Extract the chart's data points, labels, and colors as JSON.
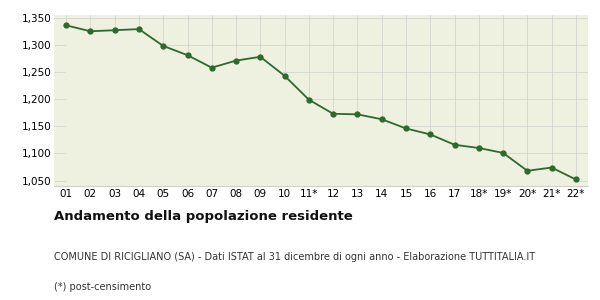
{
  "x_labels": [
    "01",
    "02",
    "03",
    "04",
    "05",
    "06",
    "07",
    "08",
    "09",
    "10",
    "11*",
    "12",
    "13",
    "14",
    "15",
    "16",
    "17",
    "18*",
    "19*",
    "20*",
    "21*",
    "22*"
  ],
  "values": [
    1336,
    1325,
    1327,
    1329,
    1298,
    1281,
    1258,
    1271,
    1278,
    1243,
    1199,
    1173,
    1172,
    1163,
    1146,
    1135,
    1116,
    1110,
    1101,
    1068,
    1074,
    1052
  ],
  "ylim": [
    1040,
    1355
  ],
  "yticks": [
    1050,
    1100,
    1150,
    1200,
    1250,
    1300,
    1350
  ],
  "line_color": "#2d6a2d",
  "fill_color": "#eef0e0",
  "marker_color": "#2d6a2d",
  "bg_color": "#ffffff",
  "grid_color": "#d0d0d0",
  "title": "Andamento della popolazione residente",
  "subtitle": "COMUNE DI RICIGLIANO (SA) - Dati ISTAT al 31 dicembre di ogni anno - Elaborazione TUTTITALIA.IT",
  "footnote": "(*) post-censimento",
  "title_fontsize": 9.5,
  "subtitle_fontsize": 7,
  "footnote_fontsize": 7,
  "tick_fontsize": 7.5
}
